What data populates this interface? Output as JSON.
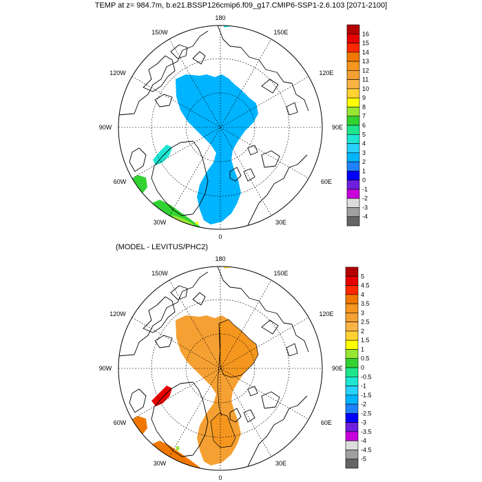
{
  "title": "TEMP at z= 984.7m, b.e21.BSSP126cmip6.f09_g17.CMIP6-SSP1-2.6.103 [2071-2100]",
  "subtitle": "(MODEL - LEVITUS/PHC2)",
  "longitude_labels": [
    "180",
    "150E",
    "120E",
    "90E",
    "60E",
    "30E",
    "0",
    "30W",
    "60W",
    "90W",
    "120W",
    "150W"
  ],
  "top_panel": {
    "colorbar_labels": [
      "16",
      "15",
      "14",
      "13",
      "12",
      "11",
      "10",
      "9",
      "8",
      "7",
      "6",
      "5",
      "4",
      "3",
      "2",
      "1",
      "0",
      "-1",
      "-2",
      "-3",
      "-4"
    ],
    "colorbar_colors": [
      "#b40000",
      "#e60000",
      "#ff2800",
      "#f07800",
      "#f5961e",
      "#f5a032",
      "#fab446",
      "#ffd232",
      "#ffff00",
      "#96e632",
      "#32d232",
      "#1ee68c",
      "#1ee6d2",
      "#28d2ff",
      "#00b4ff",
      "#1e82ff",
      "#0000ff",
      "#6e1edc",
      "#c800dc",
      "#dcdcdc",
      "#a0a0a0",
      "#646464"
    ]
  },
  "bottom_panel": {
    "colorbar_labels": [
      "5",
      "4.5",
      "4",
      "3.5",
      "3",
      "2.5",
      "2",
      "1.5",
      "1",
      "0.5",
      "0",
      "-0.5",
      "-1",
      "-1.5",
      "-2",
      "-2.5",
      "-3",
      "-3.5",
      "-4",
      "-4.5",
      "-5"
    ],
    "colorbar_colors": [
      "#b40000",
      "#e60000",
      "#ff2800",
      "#f07800",
      "#f5961e",
      "#f5a032",
      "#fab446",
      "#ffd232",
      "#ffff00",
      "#96e632",
      "#32d232",
      "#1ee68c",
      "#1ee6d2",
      "#28d2ff",
      "#00b4ff",
      "#1e82ff",
      "#0000ff",
      "#6e1edc",
      "#c800dc",
      "#dcdcdc",
      "#a0a0a0",
      "#646464"
    ]
  }
}
